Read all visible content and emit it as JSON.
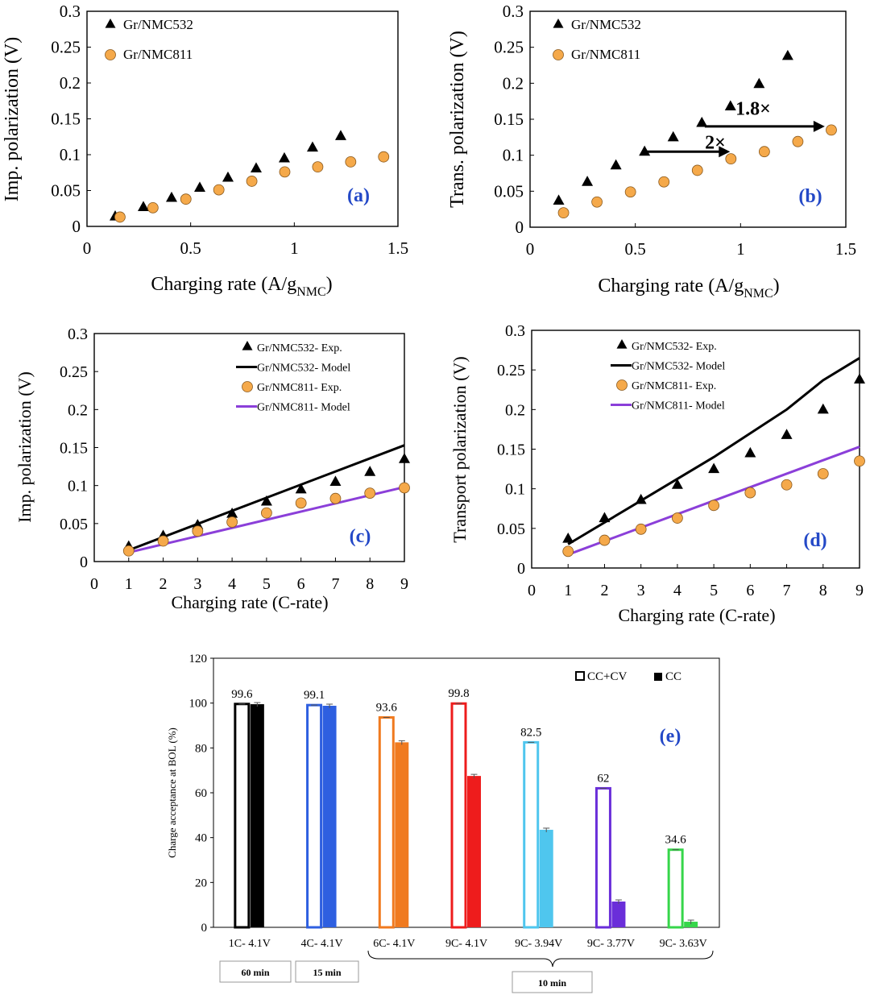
{
  "chart_data": [
    {
      "id": "a",
      "type": "scatter",
      "panel_label": "(a)",
      "xlabel": "Charging rate (A/g",
      "xlabel_sub": "NMC",
      "xlabel_end": ")",
      "ylabel": "Imp. polarization (V)",
      "xlim": [
        0,
        1.5
      ],
      "ylim": [
        0,
        0.3
      ],
      "xticks": [
        0,
        0.5,
        1,
        1.5
      ],
      "xtick_labels": [
        "0",
        "0.5",
        "1",
        "1.5"
      ],
      "yticks": [
        0,
        0.05,
        0.1,
        0.15,
        0.2,
        0.25,
        0.3
      ],
      "ytick_labels": [
        "0",
        "0.05",
        "0.1",
        "0.15",
        "0.2",
        "0.25",
        "0.3"
      ],
      "series": [
        {
          "name": "Gr/NMC532",
          "marker": "triangle",
          "color": "#000000",
          "x": [
            0.136,
            0.272,
            0.408,
            0.544,
            0.68,
            0.816,
            0.952,
            1.088,
            1.224
          ],
          "y": [
            0.014,
            0.027,
            0.04,
            0.054,
            0.068,
            0.081,
            0.095,
            0.11,
            0.126
          ]
        },
        {
          "name": "Gr/NMC811",
          "marker": "circle",
          "color": "#F5A94A",
          "x": [
            0.159,
            0.318,
            0.477,
            0.636,
            0.795,
            0.954,
            1.113,
            1.272,
            1.431
          ],
          "y": [
            0.013,
            0.026,
            0.038,
            0.051,
            0.063,
            0.076,
            0.083,
            0.09,
            0.097
          ]
        }
      ]
    },
    {
      "id": "b",
      "type": "scatter",
      "panel_label": "(b)",
      "xlabel": "Charging rate (A/g",
      "xlabel_sub": "NMC",
      "xlabel_end": ")",
      "ylabel": "Trans. polarization (V)",
      "xlim": [
        0,
        1.5
      ],
      "ylim": [
        0,
        0.3
      ],
      "xticks": [
        0,
        0.5,
        1,
        1.5
      ],
      "xtick_labels": [
        "0",
        "0.5",
        "1",
        "1.5"
      ],
      "yticks": [
        0,
        0.05,
        0.1,
        0.15,
        0.2,
        0.25,
        0.3
      ],
      "ytick_labels": [
        "0",
        "0.05",
        "0.1",
        "0.15",
        "0.2",
        "0.25",
        "0.3"
      ],
      "series": [
        {
          "name": "Gr/NMC532",
          "marker": "triangle",
          "color": "#000000",
          "x": [
            0.136,
            0.272,
            0.408,
            0.544,
            0.68,
            0.816,
            0.952,
            1.088,
            1.224
          ],
          "y": [
            0.037,
            0.063,
            0.086,
            0.105,
            0.125,
            0.145,
            0.168,
            0.199,
            0.238
          ]
        },
        {
          "name": "Gr/NMC811",
          "marker": "circle",
          "color": "#F5A94A",
          "x": [
            0.159,
            0.318,
            0.477,
            0.636,
            0.795,
            0.954,
            1.113,
            1.272,
            1.431
          ],
          "y": [
            0.02,
            0.035,
            0.049,
            0.063,
            0.079,
            0.095,
            0.105,
            0.119,
            0.135
          ]
        }
      ],
      "annotations": [
        {
          "text": "2×",
          "arrow_from": [
            0.544,
            0.105
          ],
          "arrow_to": [
            0.95,
            0.105
          ],
          "label_at": [
            0.88,
            0.118
          ]
        },
        {
          "text": "1.8×",
          "arrow_from": [
            0.83,
            0.14
          ],
          "arrow_to": [
            1.4,
            0.14
          ],
          "label_at": [
            1.06,
            0.165
          ]
        }
      ]
    },
    {
      "id": "c",
      "type": "scatter+line",
      "panel_label": "(c)",
      "xlabel": "Charging rate (C-rate)",
      "ylabel": "Imp. polarization (V)",
      "xlim": [
        0,
        9
      ],
      "ylim": [
        0,
        0.3
      ],
      "xticks": [
        0,
        1,
        2,
        3,
        4,
        5,
        6,
        7,
        8,
        9
      ],
      "xtick_labels": [
        "0",
        "1",
        "2",
        "3",
        "4",
        "5",
        "6",
        "7",
        "8",
        "9"
      ],
      "yticks": [
        0,
        0.05,
        0.1,
        0.15,
        0.2,
        0.25,
        0.3
      ],
      "ytick_labels": [
        "0",
        "0.05",
        "0.1",
        "0.15",
        "0.2",
        "0.25",
        "0.3"
      ],
      "series": [
        {
          "name": "Gr/NMC532- Exp.",
          "marker": "triangle",
          "color": "#000000",
          "x": [
            1,
            2,
            3,
            4,
            5,
            6,
            7,
            8,
            9
          ],
          "y": [
            0.02,
            0.034,
            0.048,
            0.063,
            0.079,
            0.095,
            0.105,
            0.118,
            0.135
          ]
        },
        {
          "name": "Gr/NMC532- Model",
          "marker": "line",
          "color": "#000000",
          "x": [
            1,
            9
          ],
          "y": [
            0.015,
            0.153
          ]
        },
        {
          "name": "Gr/NMC811- Exp.",
          "marker": "circle",
          "color": "#F5A94A",
          "x": [
            1,
            2,
            3,
            4,
            5,
            6,
            7,
            8,
            9
          ],
          "y": [
            0.014,
            0.027,
            0.04,
            0.052,
            0.064,
            0.077,
            0.083,
            0.09,
            0.097
          ]
        },
        {
          "name": "Gr/NMC811- Model",
          "marker": "line",
          "color": "#8B3FD9",
          "x": [
            1,
            9
          ],
          "y": [
            0.012,
            0.098
          ]
        }
      ]
    },
    {
      "id": "d",
      "type": "scatter+line",
      "panel_label": "(d)",
      "xlabel": "Charging rate (C-rate)",
      "ylabel": "Transport polarization (V)",
      "xlim": [
        0,
        9
      ],
      "ylim": [
        0,
        0.3
      ],
      "xticks": [
        0,
        1,
        2,
        3,
        4,
        5,
        6,
        7,
        8,
        9
      ],
      "xtick_labels": [
        "0",
        "1",
        "2",
        "3",
        "4",
        "5",
        "6",
        "7",
        "8",
        "9"
      ],
      "yticks": [
        0,
        0.05,
        0.1,
        0.15,
        0.2,
        0.25,
        0.3
      ],
      "ytick_labels": [
        "0",
        "0.05",
        "0.1",
        "0.15",
        "0.2",
        "0.25",
        "0.3"
      ],
      "series": [
        {
          "name": "Gr/NMC532- Exp.",
          "marker": "triangle",
          "color": "#000000",
          "x": [
            1,
            2,
            3,
            4,
            5,
            6,
            7,
            8,
            9
          ],
          "y": [
            0.037,
            0.063,
            0.086,
            0.105,
            0.125,
            0.145,
            0.168,
            0.2,
            0.238
          ]
        },
        {
          "name": "Gr/NMC532- Model",
          "marker": "line",
          "color": "#000000",
          "x": [
            1,
            3,
            5,
            7,
            8,
            9
          ],
          "y": [
            0.03,
            0.085,
            0.14,
            0.2,
            0.237,
            0.265
          ]
        },
        {
          "name": "Gr/NMC811- Exp.",
          "marker": "circle",
          "color": "#F5A94A",
          "x": [
            1,
            2,
            3,
            4,
            5,
            6,
            7,
            8,
            9
          ],
          "y": [
            0.021,
            0.035,
            0.049,
            0.063,
            0.079,
            0.095,
            0.105,
            0.119,
            0.135
          ]
        },
        {
          "name": "Gr/NMC811- Model",
          "marker": "line",
          "color": "#8B3FD9",
          "x": [
            1,
            9
          ],
          "y": [
            0.017,
            0.153
          ]
        }
      ]
    },
    {
      "id": "e",
      "type": "bar",
      "panel_label": "(e)",
      "ylabel": "Charge acceptance at BOL (%)",
      "ylim": [
        0,
        120
      ],
      "yticks": [
        0,
        20,
        40,
        60,
        80,
        100,
        120
      ],
      "ytick_labels": [
        "0",
        "20",
        "40",
        "60",
        "80",
        "100",
        "120"
      ],
      "categories": [
        "1C- 4.1V",
        "4C- 4.1V",
        "6C- 4.1V",
        "9C- 4.1V",
        "9C- 3.94V",
        "9C- 3.77V",
        "9C- 3.63V"
      ],
      "colors": [
        "#000000",
        "#2E5FE0",
        "#F07A1F",
        "#EE1C1C",
        "#4FC6EE",
        "#6A2ED9",
        "#36D64A"
      ],
      "series": [
        {
          "name": "CC+CV",
          "style": "hollow",
          "values": [
            99.6,
            99.1,
            93.6,
            99.8,
            82.5,
            62,
            34.6
          ]
        },
        {
          "name": "CC",
          "style": "filled",
          "values": [
            99.5,
            98.8,
            82.5,
            67.5,
            43.5,
            11.5,
            2.5
          ]
        }
      ],
      "value_labels": [
        "99.6",
        "99.1",
        "93.6",
        "99.8",
        "82.5",
        "62",
        "34.6"
      ],
      "group_labels": [
        "60 min",
        "15 min",
        "10 min"
      ]
    }
  ]
}
